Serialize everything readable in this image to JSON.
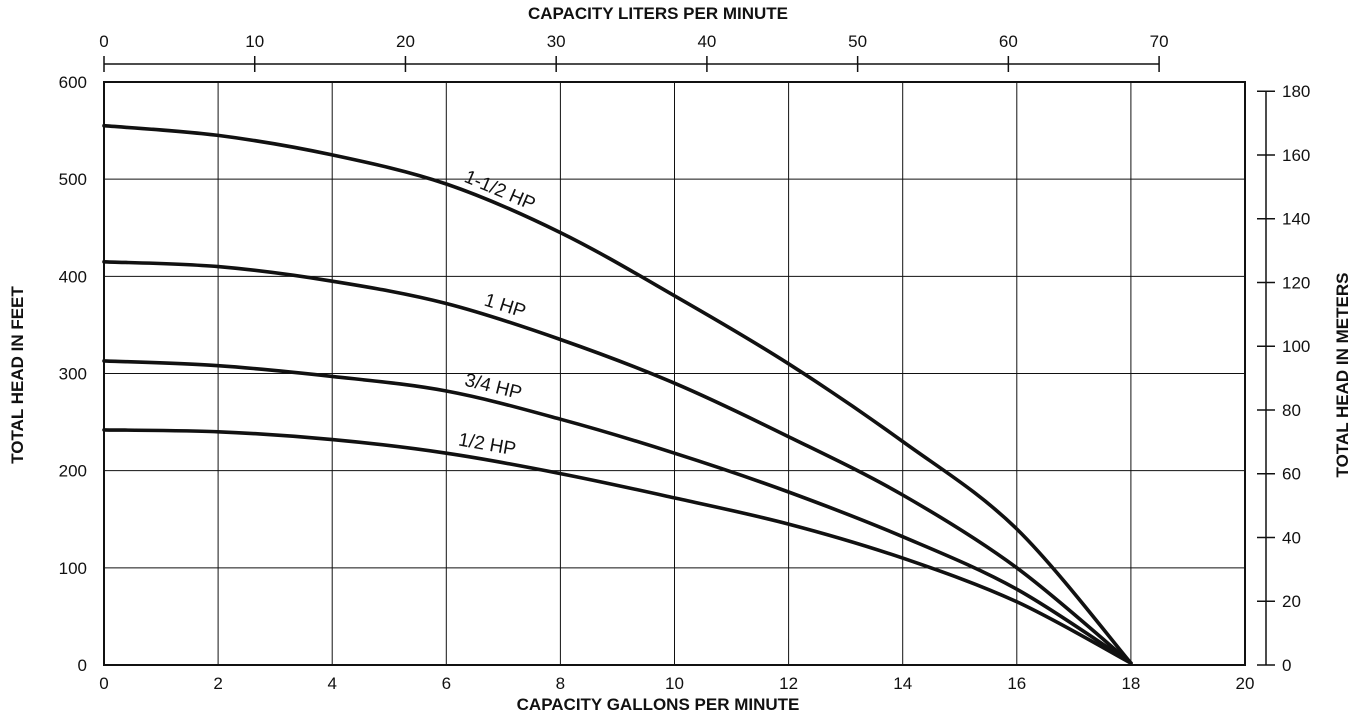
{
  "chart_data": {
    "type": "line",
    "x_bottom": {
      "title": "CAPACITY GALLONS PER MINUTE",
      "range": [
        0,
        20
      ],
      "ticks": [
        0,
        2,
        4,
        6,
        8,
        10,
        12,
        14,
        16,
        18,
        20
      ],
      "tick_labels": [
        "0",
        "2",
        "4",
        "6",
        "8",
        "10",
        "12",
        "14",
        "16",
        "18",
        "20"
      ]
    },
    "x_top": {
      "title": "CAPACITY LITERS PER MINUTE",
      "range": [
        0,
        75.7
      ],
      "ticks": [
        0,
        10,
        20,
        30,
        40,
        50,
        60,
        70
      ],
      "tick_labels": [
        "0",
        "10",
        "20",
        "30",
        "40",
        "50",
        "60",
        "70"
      ]
    },
    "y_left": {
      "title": "TOTAL HEAD IN FEET",
      "range": [
        0,
        600
      ],
      "ticks": [
        0,
        100,
        200,
        300,
        400,
        500,
        600
      ],
      "tick_labels": [
        "0",
        "100",
        "200",
        "300",
        "400",
        "500",
        "600"
      ]
    },
    "y_right": {
      "title": "TOTAL HEAD IN METERS",
      "range": [
        0,
        182.9
      ],
      "ticks": [
        0,
        20,
        40,
        60,
        80,
        100,
        120,
        140,
        160,
        180
      ],
      "tick_labels": [
        "0",
        "20",
        "40",
        "60",
        "80",
        "100",
        "120",
        "140",
        "160",
        "180"
      ]
    },
    "grid": true,
    "series": [
      {
        "name": "1-1/2 HP",
        "x": [
          0,
          2,
          4,
          6,
          8,
          10,
          12,
          14,
          16,
          18
        ],
        "y": [
          555,
          545,
          525,
          495,
          445,
          380,
          310,
          230,
          140,
          2
        ]
      },
      {
        "name": "1 HP",
        "x": [
          0,
          2,
          4,
          6,
          8,
          10,
          12,
          14,
          16,
          18
        ],
        "y": [
          415,
          410,
          395,
          372,
          335,
          290,
          235,
          175,
          100,
          2
        ]
      },
      {
        "name": "3/4 HP",
        "x": [
          0,
          2,
          4,
          6,
          8,
          10,
          12,
          14,
          16,
          18
        ],
        "y": [
          313,
          308,
          297,
          282,
          253,
          218,
          178,
          132,
          78,
          2
        ]
      },
      {
        "name": "1/2 HP",
        "x": [
          0,
          2,
          4,
          6,
          8,
          10,
          12,
          14,
          16,
          18
        ],
        "y": [
          242,
          240,
          232,
          218,
          197,
          172,
          145,
          110,
          65,
          2
        ]
      }
    ]
  }
}
